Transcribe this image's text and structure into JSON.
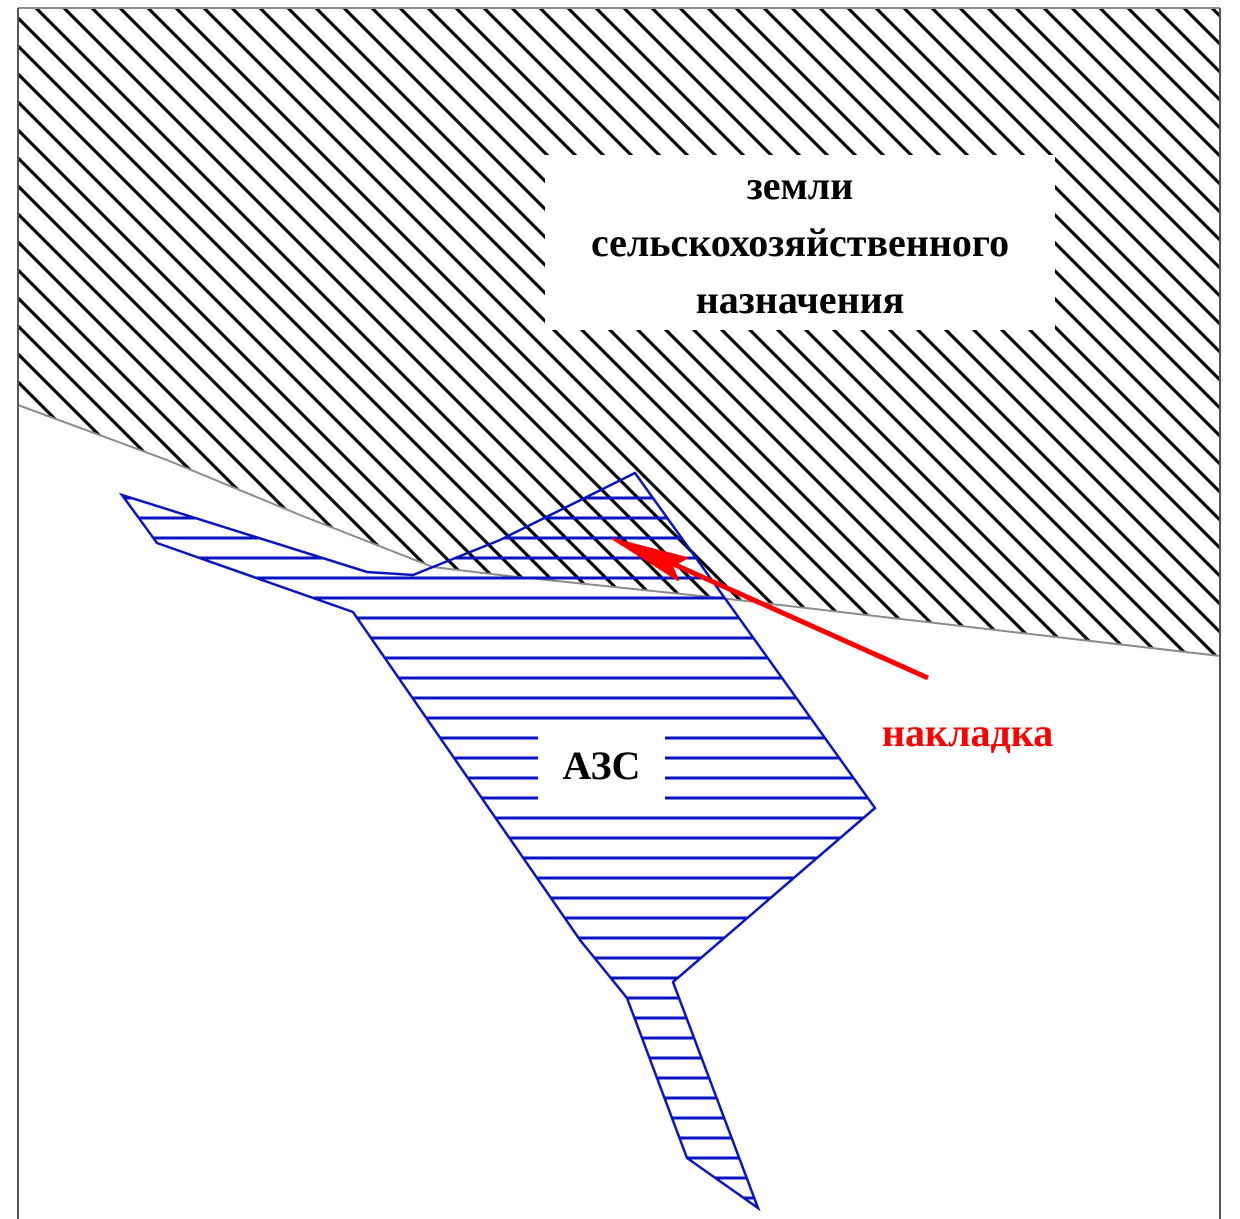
{
  "zone": {
    "label_lines": [
      "земли",
      "сельскохозяйственного",
      "назначения"
    ],
    "hatch_color": "#000000",
    "boundary_color": "#8c8c8c"
  },
  "station": {
    "label": "АЗС",
    "color": "#0a14c0"
  },
  "overlap": {
    "label": "накладка",
    "color": "#ff0000"
  }
}
